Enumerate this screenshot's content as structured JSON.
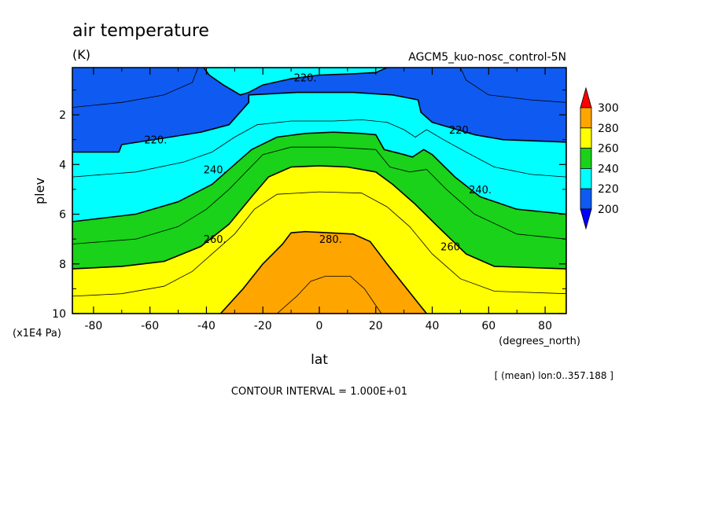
{
  "chart_data": {
    "type": "contour",
    "title": "air temperature",
    "units": "(K)",
    "experiment": "AGCM5_kuo-nosc_control-5N",
    "xlabel": "lat",
    "xunits": "(degrees_north)",
    "ylabel": "plev",
    "yunits": "(x1E4 Pa)",
    "xlim": [
      -87.5,
      87.5
    ],
    "ylim": [
      10,
      0.1
    ],
    "xticks": [
      -80,
      -60,
      -40,
      -20,
      0,
      20,
      40,
      60,
      80
    ],
    "xtick_labels": [
      "-80",
      "-60",
      "-40",
      "-20",
      "0",
      "20",
      "40",
      "60",
      "80"
    ],
    "yticks": [
      2,
      4,
      6,
      8,
      10
    ],
    "ytick_labels": [
      "2",
      "4",
      "6",
      "8",
      "10"
    ],
    "contour_interval_text": "CONTOUR INTERVAL = 1.000E+01",
    "mean_note": "[ (mean) lon:0..357.188 ]",
    "colorbar": {
      "levels": [
        "200",
        "220",
        "240",
        "260",
        "280",
        "300"
      ],
      "colors": [
        "#0f5af0",
        "#00ffff",
        "#19d219",
        "#ffff00",
        "#ffa500",
        "#ff0000"
      ],
      "under_color": "#0000ff",
      "over_color": "#ff0000"
    },
    "contour_labels": [
      {
        "text": "220.",
        "lat": -5,
        "plev": 0.5
      },
      {
        "text": "220.",
        "lat": -58,
        "plev": 3.0
      },
      {
        "text": "220.",
        "lat": 50,
        "plev": 2.6
      },
      {
        "text": "240.",
        "lat": -37,
        "plev": 4.2
      },
      {
        "text": "240.",
        "lat": 57,
        "plev": 5.0
      },
      {
        "text": "260.",
        "lat": -37,
        "plev": 7.0
      },
      {
        "text": "260.",
        "lat": 47,
        "plev": 7.3
      },
      {
        "text": "280.",
        "lat": 4,
        "plev": 7.0
      }
    ],
    "regions": [
      {
        "level": 200,
        "color": "#0f5af0",
        "boundary": [
          [
            -87.5,
            0.1
          ],
          [
            87.5,
            0.1
          ],
          [
            87.5,
            10
          ],
          [
            -87.5,
            10
          ]
        ]
      },
      {
        "level": 220,
        "color": "#00ffff",
        "boundary": [
          [
            -87.5,
            3.5
          ],
          [
            -71,
            3.5
          ],
          [
            -70,
            3.2
          ],
          [
            -53,
            2.9
          ],
          [
            -42,
            2.7
          ],
          [
            -32,
            2.4
          ],
          [
            -25,
            1.5
          ],
          [
            -25,
            1.2
          ],
          [
            -8,
            1.1
          ],
          [
            12,
            1.1
          ],
          [
            26,
            1.2
          ],
          [
            35,
            1.4
          ],
          [
            36,
            1.9
          ],
          [
            40,
            2.3
          ],
          [
            55,
            2.8
          ],
          [
            65,
            3.0
          ],
          [
            87.5,
            3.1
          ],
          [
            87.5,
            10
          ],
          [
            -87.5,
            10
          ]
        ]
      },
      {
        "level": 220,
        "color": "#00ffff",
        "boundary": [
          [
            -41,
            0.1
          ],
          [
            -39,
            0.4
          ],
          [
            -34,
            0.8
          ],
          [
            -28,
            1.2
          ],
          [
            -25,
            1.1
          ],
          [
            -20,
            0.8
          ],
          [
            -10,
            0.55
          ],
          [
            0,
            0.4
          ],
          [
            12,
            0.35
          ],
          [
            20,
            0.3
          ],
          [
            24,
            0.1
          ]
        ]
      },
      {
        "level": 240,
        "color": "#19d219",
        "boundary": [
          [
            -87.5,
            6.3
          ],
          [
            -65,
            6.0
          ],
          [
            -50,
            5.5
          ],
          [
            -38,
            4.8
          ],
          [
            -30,
            4.0
          ],
          [
            -24,
            3.4
          ],
          [
            -15,
            2.9
          ],
          [
            -5,
            2.75
          ],
          [
            5,
            2.7
          ],
          [
            15,
            2.75
          ],
          [
            20,
            2.8
          ],
          [
            23,
            3.4
          ],
          [
            30,
            3.6
          ],
          [
            33,
            3.7
          ],
          [
            37,
            3.4
          ],
          [
            40,
            3.6
          ],
          [
            48,
            4.5
          ],
          [
            57,
            5.3
          ],
          [
            70,
            5.8
          ],
          [
            87.5,
            6.0
          ],
          [
            87.5,
            10
          ],
          [
            -87.5,
            10
          ]
        ]
      },
      {
        "level": 260,
        "color": "#ffff00",
        "boundary": [
          [
            -87.5,
            8.2
          ],
          [
            -70,
            8.1
          ],
          [
            -55,
            7.9
          ],
          [
            -42,
            7.3
          ],
          [
            -32,
            6.4
          ],
          [
            -24,
            5.3
          ],
          [
            -18,
            4.5
          ],
          [
            -10,
            4.1
          ],
          [
            0,
            4.05
          ],
          [
            10,
            4.1
          ],
          [
            20,
            4.3
          ],
          [
            26,
            4.8
          ],
          [
            34,
            5.6
          ],
          [
            42,
            6.5
          ],
          [
            52,
            7.6
          ],
          [
            62,
            8.1
          ],
          [
            87.5,
            8.2
          ],
          [
            87.5,
            10
          ],
          [
            -87.5,
            10
          ]
        ]
      },
      {
        "level": 280,
        "color": "#ffa500",
        "boundary": [
          [
            -35,
            10
          ],
          [
            -27,
            9.0
          ],
          [
            -20,
            8.0
          ],
          [
            -13,
            7.2
          ],
          [
            -10,
            6.75
          ],
          [
            -5,
            6.7
          ],
          [
            12,
            6.8
          ],
          [
            18,
            7.1
          ],
          [
            24,
            8.0
          ],
          [
            31,
            9.0
          ],
          [
            38,
            10
          ]
        ]
      }
    ],
    "thin_contours": [
      [
        [
          -87.5,
          1.7
        ],
        [
          -70,
          1.5
        ],
        [
          -55,
          1.2
        ],
        [
          -45,
          0.7
        ],
        [
          -43,
          0.1
        ]
      ],
      [
        [
          50,
          0.1
        ],
        [
          52,
          0.6
        ],
        [
          60,
          1.2
        ],
        [
          75,
          1.4
        ],
        [
          87.5,
          1.5
        ]
      ],
      [
        [
          -87.5,
          4.5
        ],
        [
          -65,
          4.3
        ],
        [
          -48,
          3.9
        ],
        [
          -38,
          3.5
        ],
        [
          -30,
          2.9
        ],
        [
          -22,
          2.4
        ],
        [
          -10,
          2.25
        ],
        [
          5,
          2.25
        ],
        [
          15,
          2.2
        ],
        [
          24,
          2.3
        ],
        [
          30,
          2.6
        ],
        [
          34,
          2.9
        ],
        [
          38,
          2.6
        ],
        [
          44,
          3.0
        ],
        [
          52,
          3.5
        ],
        [
          62,
          4.1
        ],
        [
          75,
          4.4
        ],
        [
          87.5,
          4.5
        ]
      ],
      [
        [
          -87.5,
          7.2
        ],
        [
          -65,
          7.0
        ],
        [
          -50,
          6.5
        ],
        [
          -40,
          5.8
        ],
        [
          -32,
          5.0
        ],
        [
          -26,
          4.3
        ],
        [
          -20,
          3.6
        ],
        [
          -10,
          3.3
        ],
        [
          5,
          3.3
        ],
        [
          20,
          3.4
        ],
        [
          25,
          4.1
        ],
        [
          32,
          4.3
        ],
        [
          38,
          4.2
        ],
        [
          45,
          5.0
        ],
        [
          55,
          6.0
        ],
        [
          70,
          6.8
        ],
        [
          87.5,
          7.0
        ]
      ],
      [
        [
          -87.5,
          9.3
        ],
        [
          -70,
          9.2
        ],
        [
          -55,
          8.9
        ],
        [
          -45,
          8.3
        ],
        [
          -38,
          7.6
        ],
        [
          -30,
          6.8
        ],
        [
          -23,
          5.8
        ],
        [
          -15,
          5.2
        ],
        [
          0,
          5.1
        ],
        [
          15,
          5.15
        ],
        [
          24,
          5.7
        ],
        [
          32,
          6.5
        ],
        [
          40,
          7.6
        ],
        [
          50,
          8.6
        ],
        [
          62,
          9.1
        ],
        [
          87.5,
          9.2
        ]
      ],
      [
        [
          -15,
          10
        ],
        [
          -8,
          9.3
        ],
        [
          -3,
          8.7
        ],
        [
          2,
          8.5
        ],
        [
          11,
          8.5
        ],
        [
          16,
          9.0
        ],
        [
          22,
          10
        ]
      ]
    ]
  }
}
